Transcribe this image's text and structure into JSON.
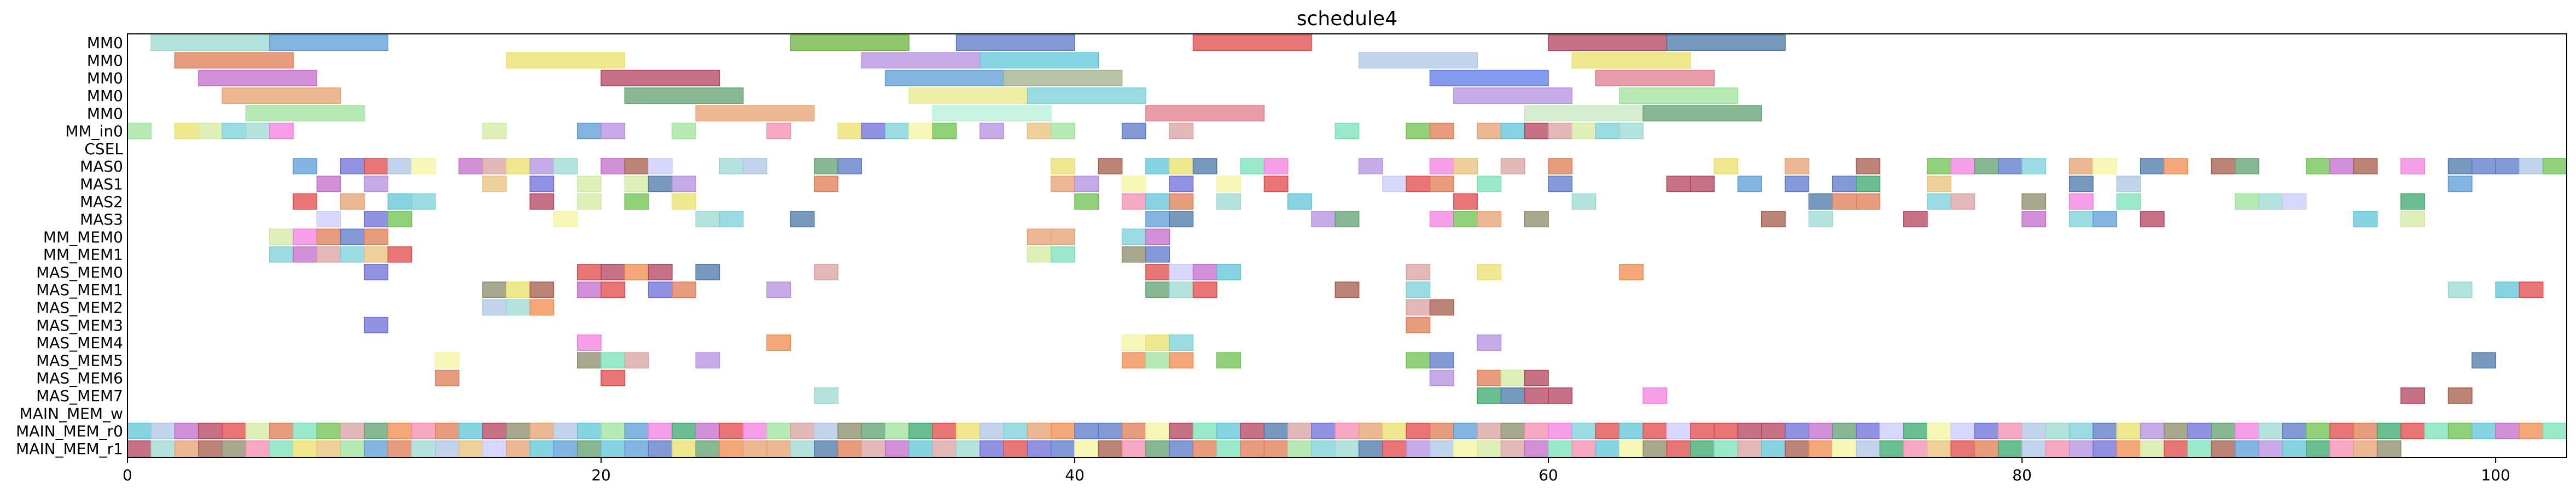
{
  "chart_data": {
    "type": "gantt",
    "title": "schedule4",
    "xlim": [
      0,
      103
    ],
    "x_ticks": [
      0,
      20,
      40,
      60,
      80,
      100
    ],
    "x_tick_labels": [
      "0",
      "20",
      "40",
      "60",
      "80",
      "100"
    ],
    "grid": false,
    "rows": [
      "MM0",
      "MM0",
      "MM0",
      "MM0",
      "MM0",
      "MM_in0",
      "CSEL",
      "MAS0",
      "MAS1",
      "MAS2",
      "MAS3",
      "MM_MEM0",
      "MM_MEM1",
      "MAS_MEM0",
      "MAS_MEM1",
      "MAS_MEM2",
      "MAS_MEM3",
      "MAS_MEM4",
      "MAS_MEM5",
      "MAS_MEM6",
      "MAS_MEM7",
      "MAIN_MEM_w",
      "MAIN_MEM_r0",
      "MAIN_MEM_r1"
    ],
    "palette": [
      "#9ad9d0",
      "#5b9bd5",
      "#e07b53",
      "#c26bc9",
      "#e6a070",
      "#9de29a",
      "#e9e06a",
      "#b3415e",
      "#5fa06f",
      "#7ad0d8",
      "#5a78c9",
      "#b38fe0",
      "#d9a0a0",
      "#e04848",
      "#5ec4d8",
      "#d3e9a0",
      "#aec4e6",
      "#6bc24c",
      "#4a77a8",
      "#f48cb0",
      "#8b8b6a",
      "#a65b4a",
      "#6d6dd9",
      "#f08a4b",
      "#e8c07a",
      "#c9c9ff",
      "#77e2b8",
      "#f4f4a0",
      "#f47ee0",
      "#3aa86e"
    ],
    "bars": [
      {
        "row": 0,
        "start": 1,
        "dur": 5,
        "color": "#9ad9d0"
      },
      {
        "row": 0,
        "start": 6,
        "dur": 5,
        "color": "#5b9bd5"
      },
      {
        "row": 0,
        "start": 28,
        "dur": 5,
        "color": "#6bb33c"
      },
      {
        "row": 0,
        "start": 35,
        "dur": 5,
        "color": "#5a78c9"
      },
      {
        "row": 0,
        "start": 45,
        "dur": 5,
        "color": "#e04848"
      },
      {
        "row": 0,
        "start": 60,
        "dur": 5,
        "color": "#b3415e"
      },
      {
        "row": 0,
        "start": 65,
        "dur": 5,
        "color": "#4a77a8"
      },
      {
        "row": 1,
        "start": 2,
        "dur": 5,
        "color": "#e07b53"
      },
      {
        "row": 1,
        "start": 16,
        "dur": 5,
        "color": "#e9e06a"
      },
      {
        "row": 1,
        "start": 31,
        "dur": 5,
        "color": "#b38fe0"
      },
      {
        "row": 1,
        "start": 36,
        "dur": 5,
        "color": "#5ec4d8"
      },
      {
        "row": 1,
        "start": 52,
        "dur": 5,
        "color": "#aec4e6"
      },
      {
        "row": 1,
        "start": 61,
        "dur": 5,
        "color": "#e9e06a"
      },
      {
        "row": 2,
        "start": 3,
        "dur": 5,
        "color": "#c26bc9"
      },
      {
        "row": 2,
        "start": 20,
        "dur": 5,
        "color": "#b3415e"
      },
      {
        "row": 2,
        "start": 32,
        "dur": 5,
        "color": "#5b9bd5"
      },
      {
        "row": 2,
        "start": 37,
        "dur": 5,
        "color": "#a0b08a"
      },
      {
        "row": 2,
        "start": 55,
        "dur": 5,
        "color": "#5a78e9"
      },
      {
        "row": 2,
        "start": 62,
        "dur": 5,
        "color": "#e07b8b"
      },
      {
        "row": 3,
        "start": 4,
        "dur": 5,
        "color": "#e6a070"
      },
      {
        "row": 3,
        "start": 21,
        "dur": 5,
        "color": "#5fa06f"
      },
      {
        "row": 3,
        "start": 33,
        "dur": 5,
        "color": "#e9e88a"
      },
      {
        "row": 3,
        "start": 38,
        "dur": 5,
        "color": "#7ad0d8"
      },
      {
        "row": 3,
        "start": 56,
        "dur": 5,
        "color": "#b38fe0"
      },
      {
        "row": 3,
        "start": 63,
        "dur": 5,
        "color": "#9de29a"
      },
      {
        "row": 4,
        "start": 5,
        "dur": 5,
        "color": "#9de29a"
      },
      {
        "row": 4,
        "start": 24,
        "dur": 5,
        "color": "#e6a070"
      },
      {
        "row": 4,
        "start": 34,
        "dur": 5,
        "color": "#b8f0d8"
      },
      {
        "row": 4,
        "start": 43,
        "dur": 5,
        "color": "#e07b8b"
      },
      {
        "row": 4,
        "start": 59,
        "dur": 5,
        "color": "#c8e8c0"
      },
      {
        "row": 4,
        "start": 64,
        "dur": 5,
        "color": "#5fa06f"
      },
      {
        "row": 23,
        "start": 0,
        "dur": 103,
        "color": "#d9a0a0",
        "fill": "r1"
      },
      {
        "row": 22,
        "start": 0,
        "dur": 103,
        "color": "#9ad9d0",
        "fill": "r0"
      }
    ]
  }
}
